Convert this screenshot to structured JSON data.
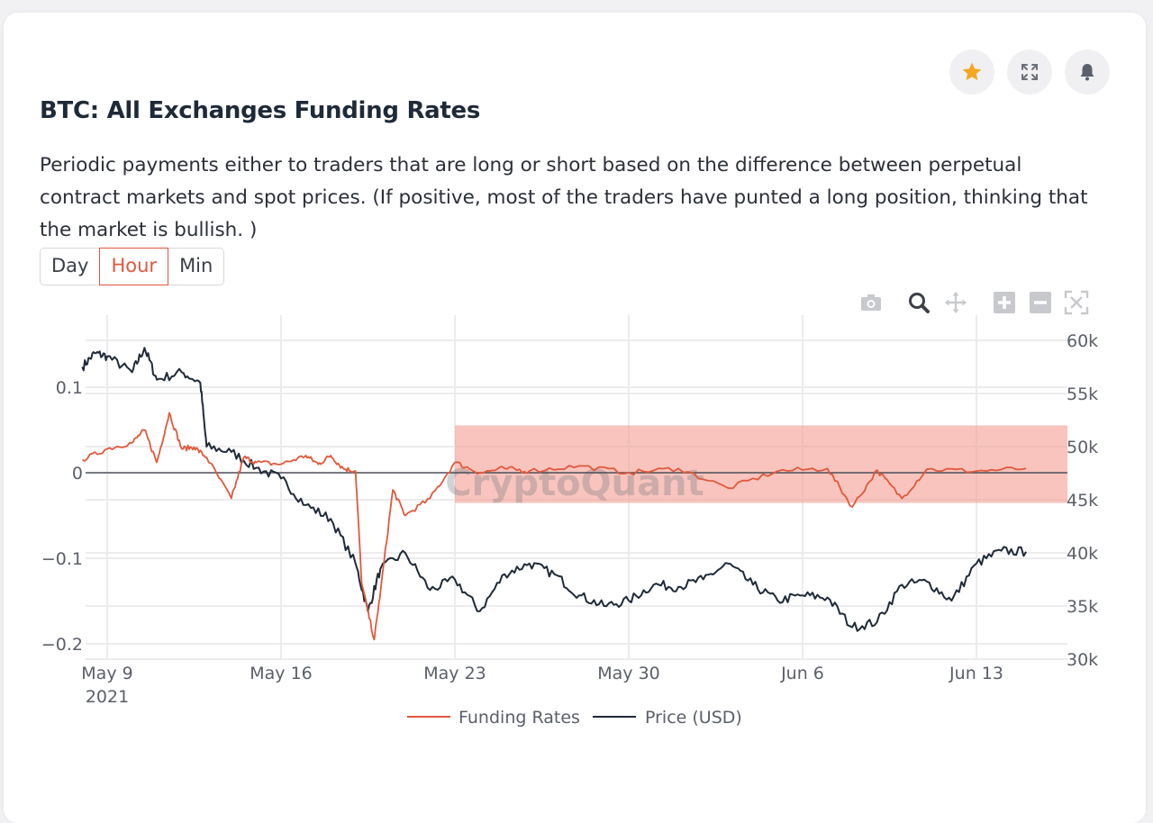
{
  "header": {
    "title": "BTC: All Exchanges Funding Rates",
    "description": "Periodic payments either to traders that are long or short based on the difference between perpetual contract markets and spot prices. (If positive, most of the traders have punted a long position, thinking that the market is bullish. )",
    "star_icon": "star-icon",
    "expand_icon": "expand-icon",
    "bell_icon": "bell-icon"
  },
  "tabs": [
    {
      "label": "Day",
      "active": false
    },
    {
      "label": "Hour",
      "active": true
    },
    {
      "label": "Min",
      "active": false
    }
  ],
  "modebar": [
    "camera-icon",
    "zoom-icon",
    "pan-icon",
    "zoom-in-icon",
    "zoom-out-icon",
    "autoscale-icon"
  ],
  "watermark": "CryptoQuant",
  "colors": {
    "funding": "#e1583c",
    "price": "#1f2a38",
    "highlight": "#f4a59a",
    "accent": "#e1583c",
    "star": "#f5a623"
  },
  "chart_data": {
    "type": "line",
    "x_ticks": [
      "May 9",
      "May 16",
      "May 23",
      "May 30",
      "Jun 6",
      "Jun 13"
    ],
    "x_year_label": "2021",
    "x_range": [
      "2021-05-08",
      "2021-06-15"
    ],
    "y_left": {
      "ticks": [
        0.1,
        0,
        -0.1,
        -0.2
      ],
      "tick_labels": [
        "0.1",
        "0",
        "−0.1",
        "−0.2"
      ],
      "range": [
        -0.2,
        0.1
      ]
    },
    "y_right": {
      "ticks": [
        60000,
        55000,
        50000,
        45000,
        40000,
        35000,
        30000
      ],
      "tick_labels": [
        "60k",
        "55k",
        "50k",
        "45k",
        "40k",
        "35k",
        "30k"
      ],
      "range": [
        30000,
        60000
      ]
    },
    "grid": true,
    "legend_position": "bottom",
    "highlight_region": {
      "x_start": "2021-05-23",
      "x_end": "2021-06-15",
      "y_low_price": 44700,
      "y_high_price": 52000
    },
    "series": [
      {
        "name": "Funding Rates",
        "axis": "left",
        "points": [
          [
            "2021-05-08",
            0.015
          ],
          [
            "2021-05-09",
            0.028
          ],
          [
            "2021-05-10",
            0.035
          ],
          [
            "2021-05-10T12:00",
            0.05
          ],
          [
            "2021-05-11",
            0.012
          ],
          [
            "2021-05-11T12:00",
            0.07
          ],
          [
            "2021-05-12",
            0.028
          ],
          [
            "2021-05-12T12:00",
            0.03
          ],
          [
            "2021-05-13",
            0.018
          ],
          [
            "2021-05-14",
            -0.03
          ],
          [
            "2021-05-14T12:00",
            0.018
          ],
          [
            "2021-05-15",
            0.012
          ],
          [
            "2021-05-16",
            0.01
          ],
          [
            "2021-05-17",
            0.02
          ],
          [
            "2021-05-17T12:00",
            0.01
          ],
          [
            "2021-05-18",
            0.02
          ],
          [
            "2021-05-18T12:00",
            0.005
          ],
          [
            "2021-05-19",
            0.002
          ],
          [
            "2021-05-19T06:00",
            -0.13
          ],
          [
            "2021-05-19T18:00",
            -0.195
          ],
          [
            "2021-05-20",
            -0.14
          ],
          [
            "2021-05-20T12:00",
            -0.02
          ],
          [
            "2021-05-21",
            -0.05
          ],
          [
            "2021-05-22",
            -0.03
          ],
          [
            "2021-05-23",
            0.012
          ],
          [
            "2021-05-24",
            0.0
          ],
          [
            "2021-05-25",
            0.005
          ],
          [
            "2021-05-26",
            0.002
          ],
          [
            "2021-05-28",
            0.008
          ],
          [
            "2021-05-30",
            0.0
          ],
          [
            "2021-06-01",
            0.005
          ],
          [
            "2021-06-03",
            -0.018
          ],
          [
            "2021-06-05",
            0.002
          ],
          [
            "2021-06-07",
            0.005
          ],
          [
            "2021-06-08",
            -0.04
          ],
          [
            "2021-06-09",
            0.003
          ],
          [
            "2021-06-10",
            -0.03
          ],
          [
            "2021-06-11",
            0.004
          ],
          [
            "2021-06-13",
            0.002
          ],
          [
            "2021-06-15",
            0.005
          ]
        ]
      },
      {
        "name": "Price (USD)",
        "axis": "right",
        "points": [
          [
            "2021-05-08",
            57500
          ],
          [
            "2021-05-08T12:00",
            58800
          ],
          [
            "2021-05-09",
            58500
          ],
          [
            "2021-05-10",
            57000
          ],
          [
            "2021-05-10T12:00",
            59300
          ],
          [
            "2021-05-11",
            56300
          ],
          [
            "2021-05-12",
            57000
          ],
          [
            "2021-05-12T18:00",
            56000
          ],
          [
            "2021-05-13",
            50000
          ],
          [
            "2021-05-14",
            49500
          ],
          [
            "2021-05-15",
            48000
          ],
          [
            "2021-05-16",
            47000
          ],
          [
            "2021-05-17",
            44500
          ],
          [
            "2021-05-18",
            43200
          ],
          [
            "2021-05-19",
            39000
          ],
          [
            "2021-05-19T12:00",
            34500
          ],
          [
            "2021-05-20",
            38500
          ],
          [
            "2021-05-21",
            40000
          ],
          [
            "2021-05-22",
            36500
          ],
          [
            "2021-05-23",
            37500
          ],
          [
            "2021-05-24",
            34500
          ],
          [
            "2021-05-25",
            38000
          ],
          [
            "2021-05-26",
            39000
          ],
          [
            "2021-05-27",
            38000
          ],
          [
            "2021-05-28",
            36000
          ],
          [
            "2021-05-29",
            35000
          ],
          [
            "2021-05-30",
            35500
          ],
          [
            "2021-05-31",
            37000
          ],
          [
            "2021-06-01",
            36800
          ],
          [
            "2021-06-02",
            37500
          ],
          [
            "2021-06-03",
            39000
          ],
          [
            "2021-06-04",
            37000
          ],
          [
            "2021-06-05",
            35500
          ],
          [
            "2021-06-06",
            36000
          ],
          [
            "2021-06-07",
            35800
          ],
          [
            "2021-06-08",
            33000
          ],
          [
            "2021-06-09",
            33500
          ],
          [
            "2021-06-10",
            37000
          ],
          [
            "2021-06-11",
            37300
          ],
          [
            "2021-06-12",
            35500
          ],
          [
            "2021-06-13",
            39000
          ],
          [
            "2021-06-14",
            40200
          ],
          [
            "2021-06-15",
            40100
          ]
        ]
      }
    ]
  }
}
